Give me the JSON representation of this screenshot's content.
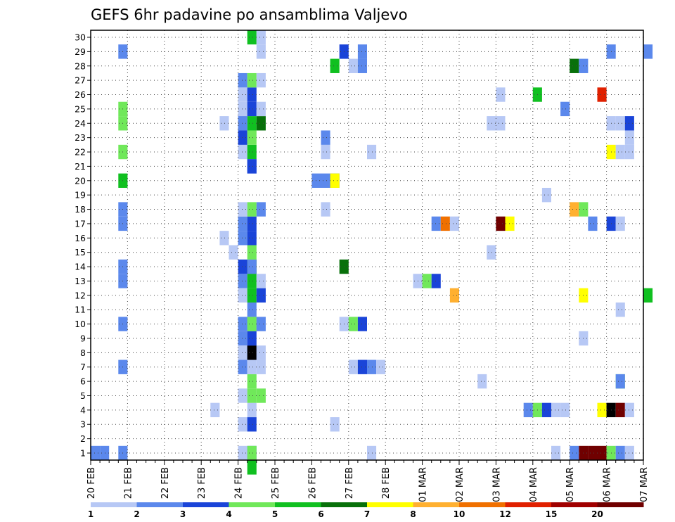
{
  "chart_data": {
    "type": "heatmap",
    "title": "GEFS 6hr padavine po ansamblima Valjevo",
    "y_ticks": [
      "1",
      "2",
      "3",
      "4",
      "5",
      "6",
      "7",
      "8",
      "9",
      "10",
      "11",
      "12",
      "13",
      "14",
      "15",
      "16",
      "17",
      "18",
      "19",
      "20",
      "21",
      "22",
      "23",
      "24",
      "25",
      "26",
      "27",
      "28",
      "29",
      "30"
    ],
    "y_range": [
      0,
      30
    ],
    "x_ticks": [
      "20 FEB",
      "21 FEB",
      "22 FEB",
      "23 FEB",
      "24 FEB",
      "25 FEB",
      "26 FEB",
      "27 FEB",
      "28 FEB",
      "01 MAR",
      "02 MAR",
      "03 MAR",
      "04 MAR",
      "05 MAR",
      "06 MAR",
      "07 MAR"
    ],
    "x_steps_per_day": 4,
    "grid": true,
    "colorbar": {
      "labels": [
        "1",
        "2",
        "3",
        "4",
        "5",
        "6",
        "7",
        "8",
        "10",
        "12",
        "15",
        "20"
      ],
      "colors": [
        "#b7c8f5",
        "#5b88ec",
        "#1a44d8",
        "#70e85a",
        "#10c020",
        "#08700a",
        "#ffff00",
        "#ffb030",
        "#f07000",
        "#e02000",
        "#a00000",
        "#700000"
      ]
    },
    "cells": [
      [
        0,
        2,
        1
      ],
      [
        1,
        2,
        1
      ],
      [
        3,
        2,
        1
      ],
      [
        3,
        2,
        7
      ],
      [
        3,
        2,
        10
      ],
      [
        3,
        2,
        13
      ],
      [
        3,
        2,
        14
      ],
      [
        3,
        2,
        17
      ],
      [
        3,
        2,
        18
      ],
      [
        3,
        2,
        29
      ],
      [
        3,
        5,
        20
      ],
      [
        3,
        4,
        22
      ],
      [
        3,
        4,
        24
      ],
      [
        3,
        4,
        25
      ],
      [
        16,
        1,
        1
      ],
      [
        16,
        1,
        3
      ],
      [
        16,
        1,
        5
      ],
      [
        16,
        2,
        7
      ],
      [
        16,
        2,
        9
      ],
      [
        16,
        2,
        10
      ],
      [
        16,
        2,
        13
      ],
      [
        16,
        3,
        14
      ],
      [
        16,
        2,
        16
      ],
      [
        16,
        2,
        17
      ],
      [
        16,
        1,
        18
      ],
      [
        16,
        1,
        12
      ],
      [
        16,
        1,
        22
      ],
      [
        16,
        3,
        23
      ],
      [
        16,
        1,
        24
      ],
      [
        16,
        1,
        25
      ],
      [
        16,
        1,
        26
      ],
      [
        16,
        2,
        27
      ],
      [
        16,
        1,
        8
      ],
      [
        17,
        2,
        1
      ],
      [
        17,
        4,
        1
      ],
      [
        17,
        3,
        3
      ],
      [
        17,
        1,
        4
      ],
      [
        17,
        4,
        5
      ],
      [
        17,
        4,
        6
      ],
      [
        17,
        1,
        7
      ],
      [
        17,
        3,
        8
      ],
      [
        17,
        13,
        8
      ],
      [
        17,
        3,
        9
      ],
      [
        17,
        2,
        10
      ],
      [
        17,
        4,
        10
      ],
      [
        17,
        2,
        11
      ],
      [
        17,
        5,
        12
      ],
      [
        17,
        5,
        13
      ],
      [
        17,
        6,
        14
      ],
      [
        17,
        2,
        14
      ],
      [
        17,
        4,
        15
      ],
      [
        17,
        3,
        16
      ],
      [
        17,
        3,
        17
      ],
      [
        17,
        4,
        18
      ],
      [
        17,
        5,
        22
      ],
      [
        17,
        4,
        23
      ],
      [
        17,
        2,
        21
      ],
      [
        17,
        3,
        21
      ],
      [
        17,
        5,
        24
      ],
      [
        17,
        3,
        25
      ],
      [
        17,
        3,
        26
      ],
      [
        17,
        4,
        27
      ],
      [
        17,
        5,
        30
      ],
      [
        17,
        5,
        0
      ],
      [
        18,
        4,
        5
      ],
      [
        18,
        1,
        7
      ],
      [
        18,
        1,
        8
      ],
      [
        18,
        2,
        10
      ],
      [
        18,
        3,
        12
      ],
      [
        18,
        1,
        13
      ],
      [
        18,
        2,
        18
      ],
      [
        18,
        6,
        24
      ],
      [
        18,
        1,
        25
      ],
      [
        18,
        1,
        27
      ],
      [
        18,
        1,
        29
      ],
      [
        18,
        1,
        30
      ],
      [
        13,
        1,
        4
      ],
      [
        14,
        1,
        16
      ],
      [
        15,
        1,
        15
      ],
      [
        14,
        1,
        24
      ],
      [
        16,
        2,
        24
      ],
      [
        24,
        2,
        20
      ],
      [
        25,
        1,
        18
      ],
      [
        25,
        2,
        20
      ],
      [
        25,
        1,
        22
      ],
      [
        25,
        2,
        23
      ],
      [
        26,
        1,
        3
      ],
      [
        26,
        3,
        20
      ],
      [
        26,
        7,
        20
      ],
      [
        26,
        5,
        28
      ],
      [
        27,
        6,
        14
      ],
      [
        27,
        1,
        10
      ],
      [
        27,
        3,
        29
      ],
      [
        28,
        1,
        7
      ],
      [
        28,
        4,
        10
      ],
      [
        28,
        1,
        28
      ],
      [
        29,
        3,
        7
      ],
      [
        29,
        3,
        10
      ],
      [
        29,
        2,
        29
      ],
      [
        29,
        2,
        28
      ],
      [
        30,
        2,
        7
      ],
      [
        30,
        1,
        1
      ],
      [
        30,
        1,
        22
      ],
      [
        31,
        1,
        7
      ],
      [
        35,
        1,
        13
      ],
      [
        36,
        4,
        13
      ],
      [
        37,
        3,
        13
      ],
      [
        37,
        2,
        17
      ],
      [
        38,
        9,
        17
      ],
      [
        39,
        1,
        17
      ],
      [
        39,
        8,
        12
      ],
      [
        42,
        1,
        6
      ],
      [
        43,
        1,
        15
      ],
      [
        43,
        1,
        24
      ],
      [
        44,
        1,
        24
      ],
      [
        44,
        1,
        26
      ],
      [
        44,
        12,
        17
      ],
      [
        45,
        7,
        17
      ],
      [
        47,
        2,
        4
      ],
      [
        48,
        4,
        4
      ],
      [
        48,
        5,
        26
      ],
      [
        49,
        3,
        4
      ],
      [
        49,
        1,
        19
      ],
      [
        50,
        1,
        4
      ],
      [
        50,
        1,
        1
      ],
      [
        51,
        1,
        4
      ],
      [
        51,
        2,
        25
      ],
      [
        52,
        2,
        1
      ],
      [
        52,
        8,
        18
      ],
      [
        52,
        6,
        28
      ],
      [
        53,
        1,
        9
      ],
      [
        53,
        4,
        18
      ],
      [
        53,
        7,
        12
      ],
      [
        53,
        2,
        28
      ],
      [
        53,
        12,
        1
      ],
      [
        54,
        12,
        1
      ],
      [
        55,
        12,
        1
      ],
      [
        55,
        7,
        4
      ],
      [
        55,
        10,
        26
      ],
      [
        54,
        2,
        17
      ],
      [
        56,
        13,
        4
      ],
      [
        56,
        1,
        24
      ],
      [
        56,
        7,
        22
      ],
      [
        56,
        2,
        29
      ],
      [
        56,
        3,
        17
      ],
      [
        56,
        4,
        1
      ],
      [
        57,
        12,
        4
      ],
      [
        57,
        4,
        6
      ],
      [
        57,
        2,
        1
      ],
      [
        57,
        1,
        17
      ],
      [
        57,
        1,
        11
      ],
      [
        57,
        1,
        24
      ],
      [
        57,
        1,
        22
      ],
      [
        57,
        2,
        6
      ],
      [
        58,
        3,
        24
      ],
      [
        58,
        1,
        4
      ],
      [
        58,
        1,
        22
      ],
      [
        58,
        1,
        23
      ],
      [
        58,
        1,
        1
      ],
      [
        60,
        5,
        12
      ],
      [
        60,
        2,
        29
      ]
    ]
  }
}
